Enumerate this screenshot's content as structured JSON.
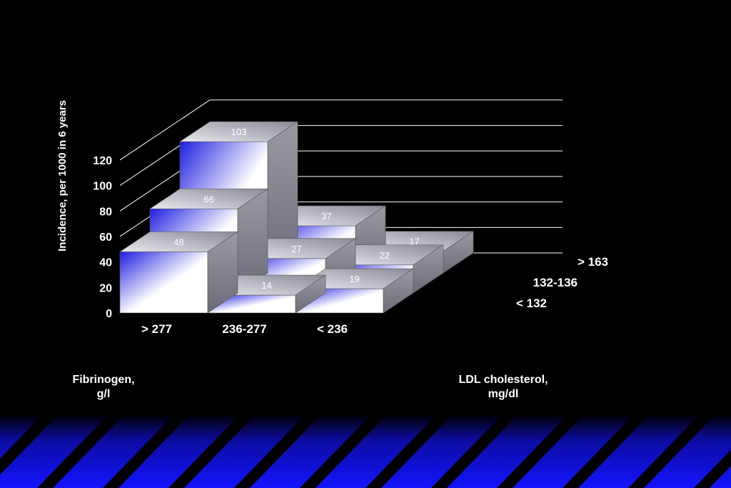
{
  "colors": {
    "background": "#000000",
    "text": "#ffffff",
    "bar_blue": "#1f1fe0",
    "bar_light": "#ffffff",
    "grid": "#ffffff",
    "band_blue": "#1414ff"
  },
  "chart_data": {
    "type": "bar3d",
    "title": "",
    "ylabel": "Incidence, per 1000 in 6 years",
    "ylim": [
      0,
      120
    ],
    "yticks": [
      "0",
      "20",
      "40",
      "60",
      "80",
      "100",
      "120"
    ],
    "x_axis": {
      "name_line1": "Fibrinogen,",
      "name_line2": "g/l",
      "categories": [
        "> 277",
        "236-277",
        "< 236"
      ]
    },
    "depth_axis": {
      "name_line1": "LDL cholesterol,",
      "name_line2": "mg/dl",
      "categories": [
        "< 132",
        "132-136",
        "> 163"
      ]
    },
    "series": [
      {
        "name": "< 132",
        "values": [
          48,
          14,
          19
        ]
      },
      {
        "name": "132-136",
        "values": [
          66,
          27,
          22
        ]
      },
      {
        "name": "> 163",
        "values": [
          103,
          37,
          17
        ]
      }
    ],
    "grid": true
  }
}
